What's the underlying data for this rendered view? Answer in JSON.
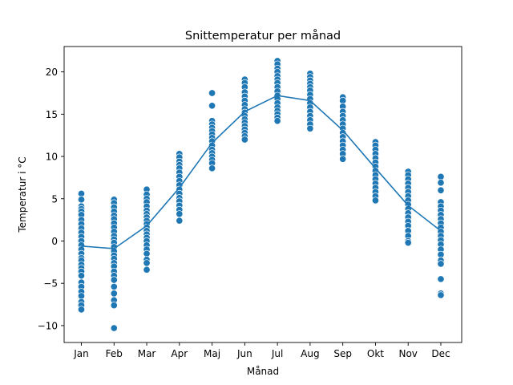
{
  "chart_data": {
    "type": "scatter",
    "title": "Snittemperatur per månad",
    "xlabel": "Månad",
    "ylabel": "Temperatur i °C",
    "categories": [
      "Jan",
      "Feb",
      "Mar",
      "Apr",
      "Maj",
      "Jun",
      "Jul",
      "Aug",
      "Sep",
      "Okt",
      "Nov",
      "Dec"
    ],
    "ylim": [
      -12,
      23
    ],
    "yticks": [
      -10,
      -5,
      0,
      5,
      10,
      15,
      20
    ],
    "ytick_labels": [
      "−10",
      "−5",
      "0",
      "5",
      "10",
      "15",
      "20"
    ],
    "grid": false,
    "colors": {
      "points": "#1f77b4",
      "line": "#1f77b4",
      "point_edge": "#ffffff"
    },
    "scatter_series": [
      {
        "category": "Jan",
        "values": [
          5.6,
          4.9,
          4.1,
          3.8,
          3.5,
          3.1,
          2.5,
          2.0,
          1.5,
          1.0,
          0.5,
          0.0,
          -0.5,
          -1.0,
          -1.5,
          -2.0,
          -2.3,
          -2.8,
          -3.2,
          -3.6,
          -4.1,
          -4.9,
          -5.4,
          -6.0,
          -6.5,
          -7.2,
          -7.6,
          -8.1
        ]
      },
      {
        "category": "Feb",
        "values": [
          4.9,
          4.5,
          4.0,
          3.5,
          3.0,
          2.6,
          2.1,
          1.6,
          1.1,
          0.6,
          0.2,
          -0.2,
          -0.7,
          -1.2,
          -1.7,
          -2.1,
          -2.6,
          -3.0,
          -3.6,
          -4.1,
          -4.6,
          -5.4,
          -6.2,
          -7.0,
          -7.6,
          -10.3
        ]
      },
      {
        "category": "Mar",
        "values": [
          6.1,
          5.5,
          5.0,
          4.6,
          4.1,
          3.6,
          3.2,
          2.8,
          2.4,
          2.0,
          1.6,
          1.2,
          0.8,
          0.4,
          0.0,
          -0.5,
          -1.0,
          -1.5,
          -2.2,
          -2.6,
          -3.4
        ]
      },
      {
        "category": "Apr",
        "values": [
          10.3,
          9.9,
          9.4,
          9.0,
          8.6,
          8.1,
          7.6,
          7.1,
          6.6,
          6.1,
          5.6,
          5.1,
          4.7,
          4.2,
          3.7,
          3.2,
          2.4
        ]
      },
      {
        "category": "Maj",
        "values": [
          17.5,
          16.0,
          14.2,
          13.8,
          13.4,
          13.0,
          12.6,
          12.2,
          11.8,
          11.3,
          10.8,
          10.4,
          10.0,
          9.6,
          9.2,
          8.6
        ]
      },
      {
        "category": "Jun",
        "values": [
          19.1,
          18.7,
          18.2,
          17.6,
          17.1,
          16.6,
          16.1,
          15.6,
          15.2,
          14.8,
          14.4,
          14.0,
          13.6,
          13.2,
          12.8,
          12.4,
          12.0
        ]
      },
      {
        "category": "Jul",
        "values": [
          21.3,
          20.9,
          20.4,
          20.0,
          19.5,
          19.1,
          18.7,
          18.2,
          17.7,
          17.2,
          16.8,
          16.3,
          15.8,
          15.4,
          15.0,
          14.6,
          14.2
        ]
      },
      {
        "category": "Aug",
        "values": [
          19.8,
          19.4,
          19.0,
          18.6,
          18.2,
          17.8,
          17.3,
          16.8,
          16.3,
          15.8,
          15.3,
          14.8,
          14.3,
          13.8,
          13.3
        ]
      },
      {
        "category": "Sep",
        "values": [
          17.0,
          16.6,
          15.9,
          15.3,
          14.8,
          14.3,
          13.8,
          13.3,
          12.8,
          12.3,
          11.8,
          11.3,
          10.8,
          10.3,
          9.7
        ]
      },
      {
        "category": "Okt",
        "values": [
          11.7,
          11.3,
          10.8,
          10.3,
          9.8,
          9.3,
          8.8,
          8.3,
          7.8,
          7.3,
          6.8,
          6.3,
          5.8,
          5.3,
          4.8
        ]
      },
      {
        "category": "Nov",
        "values": [
          8.2,
          7.8,
          7.3,
          6.8,
          6.3,
          5.8,
          5.3,
          4.8,
          4.3,
          3.8,
          3.3,
          2.8,
          2.3,
          1.8,
          1.2,
          0.6,
          0.0,
          -0.2
        ]
      },
      {
        "category": "Dec",
        "values": [
          7.6,
          6.9,
          6.0,
          4.6,
          4.1,
          3.6,
          3.1,
          2.6,
          2.1,
          1.6,
          1.1,
          0.6,
          0.1,
          -0.4,
          -1.0,
          -1.6,
          -2.3,
          -2.7,
          -4.5,
          -6.2,
          -6.4
        ]
      }
    ],
    "mean_line": {
      "categories": [
        "Jan",
        "Feb",
        "Mar",
        "Apr",
        "Maj",
        "Jun",
        "Jul",
        "Aug",
        "Sep",
        "Okt",
        "Nov",
        "Dec"
      ],
      "values": [
        -0.6,
        -0.9,
        1.8,
        6.3,
        11.6,
        15.3,
        17.2,
        16.6,
        13.1,
        8.6,
        4.2,
        1.2
      ]
    }
  }
}
